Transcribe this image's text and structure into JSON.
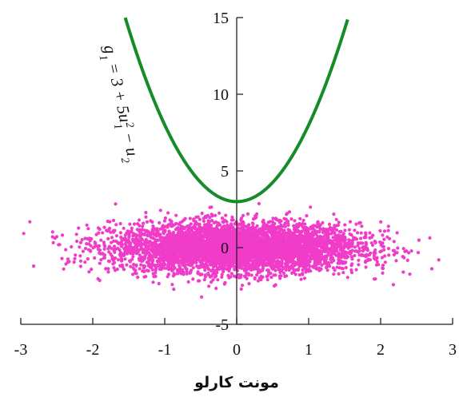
{
  "chart_data": {
    "type": "scatter",
    "title": "",
    "xlabel": "مونت کارلو",
    "ylabel": "",
    "xlim": [
      -3,
      3
    ],
    "ylim": [
      -5,
      15
    ],
    "x_ticks": [
      -3,
      -2,
      -1,
      0,
      1,
      2,
      3
    ],
    "y_ticks": [
      -5,
      0,
      5,
      10,
      15
    ],
    "x_tick_labels": [
      "-3",
      "-2",
      "-1",
      "0",
      "1",
      "2",
      "3"
    ],
    "y_tick_labels": [
      "-5",
      "0",
      "5",
      "10",
      "15"
    ],
    "grid": false,
    "series": [
      {
        "kind": "scatter",
        "color": "#f03cc8",
        "distribution": "bivariate normal",
        "x_mean": 0,
        "x_std": 0.85,
        "y_mean": 0,
        "y_std": 0.8,
        "point_count": 5000
      },
      {
        "kind": "line",
        "color": "#148c28",
        "equation": "g1 = 3 + 5u1^2 - u2 (u2 = 0)",
        "x": [
          -1.549,
          -1.4,
          -1.2,
          -1.0,
          -0.8,
          -0.6,
          -0.4,
          -0.2,
          0,
          0.2,
          0.4,
          0.6,
          0.8,
          1.0,
          1.2,
          1.4,
          1.549
        ],
        "y": [
          15,
          12.8,
          10.2,
          8.0,
          6.2,
          4.8,
          3.8,
          3.2,
          3.0,
          3.2,
          3.8,
          4.8,
          6.2,
          8.0,
          10.2,
          12.8,
          15
        ]
      }
    ],
    "annotations": [
      {
        "text": "g1 = 3 + 5u1² − u2",
        "near_series": 1
      }
    ]
  }
}
